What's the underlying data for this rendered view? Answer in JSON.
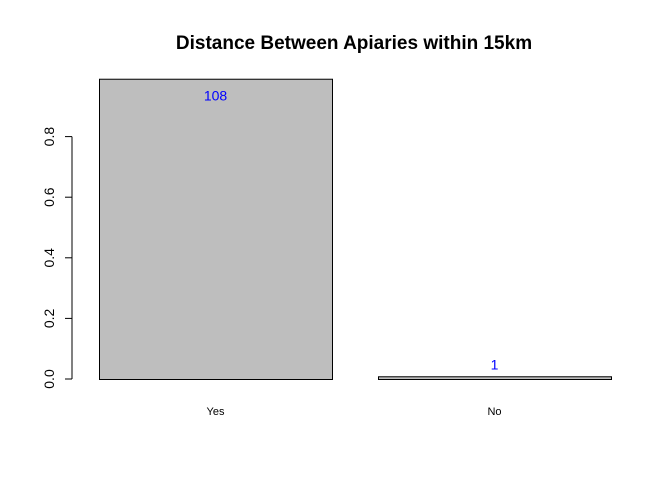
{
  "chart_data": {
    "type": "bar",
    "title": "Distance Between Apiaries within 15km",
    "xlabel": "",
    "ylabel": "",
    "categories": [
      "Yes",
      "No"
    ],
    "values": [
      0.991,
      0.009
    ],
    "data_labels": [
      "108",
      "1"
    ],
    "ylim": [
      0,
      1
    ],
    "yticks": [
      0.0,
      0.2,
      0.4,
      0.6,
      0.8
    ],
    "ytick_labels": [
      "0.0",
      "0.2",
      "0.4",
      "0.6",
      "0.8"
    ],
    "bar_color": "#bebebe",
    "bar_border_color": "#000000",
    "data_label_color": "#0000ff",
    "grid": false,
    "legend": "none"
  }
}
